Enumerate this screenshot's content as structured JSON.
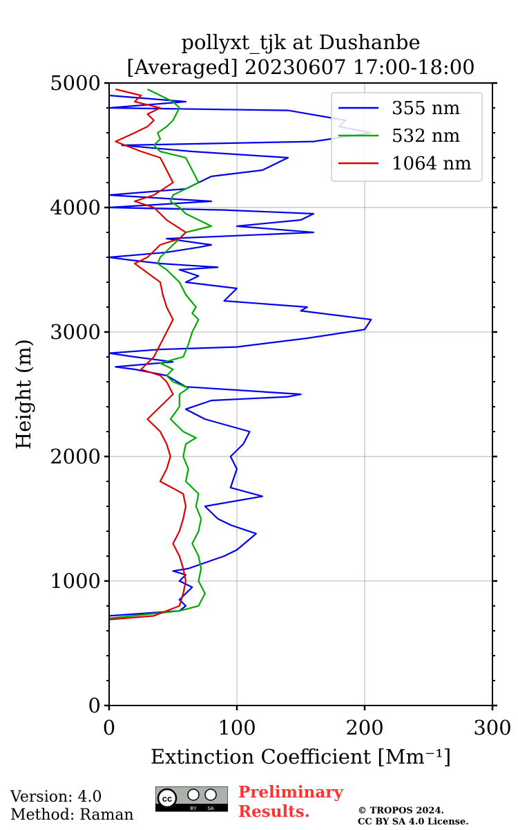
{
  "chart_data": {
    "type": "line",
    "title": "pollyxt_tjk at Dushanbe",
    "subtitle": "[Averaged] 20230607 17:00-18:00",
    "xlabel": "Extinction Coefficient [Mm⁻¹]",
    "ylabel": "Height (m)",
    "xlim": [
      0,
      300
    ],
    "ylim": [
      0,
      5000
    ],
    "xticks": [
      "0",
      "100",
      "200",
      "300"
    ],
    "yticks": [
      "0",
      "1000",
      "2000",
      "3000",
      "4000",
      "5000"
    ],
    "grid": true,
    "legend_position": "top-right",
    "series": [
      {
        "name": "355 nm",
        "color": "#0000ee",
        "points": [
          [
            0,
            720
          ],
          [
            55,
            760
          ],
          [
            60,
            800
          ],
          [
            55,
            850
          ],
          [
            65,
            950
          ],
          [
            55,
            1000
          ],
          [
            60,
            1050
          ],
          [
            50,
            1080
          ],
          [
            62,
            1100
          ],
          [
            90,
            1200
          ],
          [
            100,
            1250
          ],
          [
            115,
            1380
          ],
          [
            95,
            1450
          ],
          [
            85,
            1500
          ],
          [
            75,
            1600
          ],
          [
            120,
            1680
          ],
          [
            95,
            1750
          ],
          [
            100,
            1900
          ],
          [
            95,
            2000
          ],
          [
            105,
            2100
          ],
          [
            110,
            2200
          ],
          [
            75,
            2300
          ],
          [
            60,
            2380
          ],
          [
            80,
            2450
          ],
          [
            140,
            2480
          ],
          [
            150,
            2500
          ],
          [
            60,
            2560
          ],
          [
            45,
            2650
          ],
          [
            20,
            2700
          ],
          [
            5,
            2720
          ],
          [
            50,
            2760
          ],
          [
            20,
            2800
          ],
          [
            0,
            2830
          ],
          [
            40,
            2860
          ],
          [
            100,
            2880
          ],
          [
            155,
            2950
          ],
          [
            200,
            3020
          ],
          [
            205,
            3100
          ],
          [
            150,
            3170
          ],
          [
            155,
            3200
          ],
          [
            90,
            3250
          ],
          [
            100,
            3350
          ],
          [
            60,
            3400
          ],
          [
            70,
            3450
          ],
          [
            55,
            3500
          ],
          [
            85,
            3520
          ],
          [
            40,
            3550
          ],
          [
            15,
            3580
          ],
          [
            0,
            3600
          ],
          [
            45,
            3640
          ],
          [
            70,
            3680
          ],
          [
            80,
            3700
          ],
          [
            45,
            3750
          ],
          [
            160,
            3800
          ],
          [
            100,
            3850
          ],
          [
            150,
            3900
          ],
          [
            160,
            3950
          ],
          [
            90,
            3980
          ],
          [
            0,
            4000
          ],
          [
            80,
            4050
          ],
          [
            0,
            4100
          ],
          [
            60,
            4150
          ],
          [
            70,
            4200
          ],
          [
            80,
            4250
          ],
          [
            120,
            4300
          ],
          [
            140,
            4400
          ],
          [
            65,
            4450
          ],
          [
            10,
            4500
          ],
          [
            160,
            4530
          ],
          [
            205,
            4600
          ],
          [
            180,
            4650
          ],
          [
            185,
            4700
          ],
          [
            140,
            4780
          ],
          [
            0,
            4800
          ],
          [
            60,
            4850
          ],
          [
            0,
            4900
          ]
        ]
      },
      {
        "name": "532 nm",
        "color": "#00aa00",
        "points": [
          [
            0,
            700
          ],
          [
            55,
            760
          ],
          [
            70,
            800
          ],
          [
            75,
            900
          ],
          [
            70,
            1000
          ],
          [
            72,
            1100
          ],
          [
            70,
            1200
          ],
          [
            65,
            1300
          ],
          [
            70,
            1400
          ],
          [
            72,
            1500
          ],
          [
            68,
            1600
          ],
          [
            70,
            1700
          ],
          [
            60,
            1800
          ],
          [
            62,
            1900
          ],
          [
            58,
            2000
          ],
          [
            60,
            2100
          ],
          [
            68,
            2150
          ],
          [
            58,
            2200
          ],
          [
            48,
            2300
          ],
          [
            55,
            2400
          ],
          [
            55,
            2500
          ],
          [
            62,
            2550
          ],
          [
            50,
            2600
          ],
          [
            45,
            2650
          ],
          [
            50,
            2700
          ],
          [
            40,
            2750
          ],
          [
            58,
            2800
          ],
          [
            60,
            2850
          ],
          [
            62,
            2900
          ],
          [
            65,
            3000
          ],
          [
            70,
            3100
          ],
          [
            65,
            3150
          ],
          [
            68,
            3200
          ],
          [
            60,
            3300
          ],
          [
            55,
            3400
          ],
          [
            45,
            3500
          ],
          [
            38,
            3550
          ],
          [
            40,
            3600
          ],
          [
            50,
            3700
          ],
          [
            60,
            3800
          ],
          [
            80,
            3850
          ],
          [
            60,
            3950
          ],
          [
            55,
            4000
          ],
          [
            48,
            4050
          ],
          [
            50,
            4100
          ],
          [
            70,
            4200
          ],
          [
            65,
            4300
          ],
          [
            60,
            4400
          ],
          [
            40,
            4450
          ],
          [
            35,
            4500
          ],
          [
            40,
            4550
          ],
          [
            38,
            4600
          ],
          [
            45,
            4650
          ],
          [
            50,
            4700
          ],
          [
            55,
            4800
          ],
          [
            50,
            4850
          ],
          [
            40,
            4900
          ],
          [
            30,
            4950
          ]
        ]
      },
      {
        "name": "1064 nm",
        "color": "#dd0000",
        "points": [
          [
            0,
            690
          ],
          [
            35,
            720
          ],
          [
            45,
            760
          ],
          [
            55,
            800
          ],
          [
            58,
            900
          ],
          [
            60,
            1000
          ],
          [
            58,
            1100
          ],
          [
            55,
            1200
          ],
          [
            50,
            1300
          ],
          [
            55,
            1400
          ],
          [
            58,
            1500
          ],
          [
            60,
            1600
          ],
          [
            58,
            1700
          ],
          [
            40,
            1800
          ],
          [
            45,
            1900
          ],
          [
            48,
            2000
          ],
          [
            45,
            2100
          ],
          [
            40,
            2200
          ],
          [
            30,
            2300
          ],
          [
            40,
            2400
          ],
          [
            50,
            2500
          ],
          [
            45,
            2600
          ],
          [
            40,
            2650
          ],
          [
            25,
            2700
          ],
          [
            35,
            2800
          ],
          [
            40,
            2900
          ],
          [
            45,
            3000
          ],
          [
            50,
            3100
          ],
          [
            45,
            3200
          ],
          [
            42,
            3300
          ],
          [
            40,
            3400
          ],
          [
            20,
            3550
          ],
          [
            30,
            3600
          ],
          [
            40,
            3700
          ],
          [
            55,
            3750
          ],
          [
            60,
            3800
          ],
          [
            45,
            3900
          ],
          [
            35,
            4000
          ],
          [
            20,
            4050
          ],
          [
            35,
            4100
          ],
          [
            50,
            4200
          ],
          [
            45,
            4300
          ],
          [
            40,
            4400
          ],
          [
            25,
            4450
          ],
          [
            5,
            4530
          ],
          [
            20,
            4600
          ],
          [
            30,
            4650
          ],
          [
            35,
            4700
          ],
          [
            30,
            4750
          ],
          [
            40,
            4800
          ],
          [
            20,
            4850
          ],
          [
            25,
            4900
          ],
          [
            5,
            4950
          ]
        ]
      }
    ]
  },
  "footer": {
    "version": "Version: 4.0",
    "method": "Method: Raman",
    "preliminary_line1": "Preliminary",
    "preliminary_line2": "Results.",
    "copyright_line1": "© TROPOS 2024.",
    "copyright_line2": "CC BY SA 4.0 License.",
    "cc_logo_text": "cc",
    "cc_by": "BY",
    "cc_sa": "SA"
  }
}
